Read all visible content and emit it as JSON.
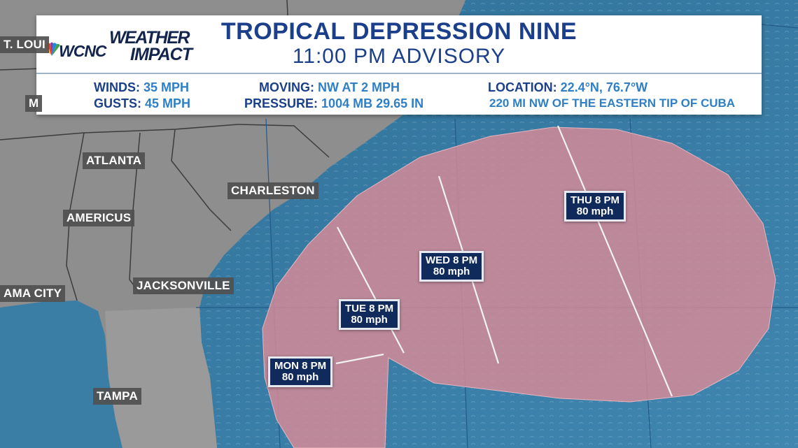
{
  "header": {
    "station": "WCNC",
    "brand_line1": "WEATHER",
    "brand_line2": "IMPACT",
    "title": "TROPICAL DEPRESSION NINE",
    "subtitle": "11:00 PM ADVISORY",
    "winds_label": "WINDS:",
    "winds_value": "35 MPH",
    "gusts_label": "GUSTS:",
    "gusts_value": "45 MPH",
    "moving_label": "MOVING:",
    "moving_value": "NW AT 2 MPH",
    "pressure_label": "PRESSURE:",
    "pressure_value": "1004 MB 29.65 IN",
    "location_label": "LOCATION:",
    "location_value": "22.4°N, 76.7°W",
    "distance": "220 MI NW OF THE EASTERN TIP OF CUBA"
  },
  "cities": {
    "st_louis": "T. LOUI",
    "atlanta": "ATLANTA",
    "charleston": "CHARLESTON",
    "americus": "AMERICUS",
    "jacksonville": "JACKSONVILLE",
    "panama_city": "AMA CITY",
    "tampa": "TAMPA",
    "m_partial": "M"
  },
  "forecast_points": [
    {
      "time": "MON 8 PM",
      "wind": "80 mph"
    },
    {
      "time": "TUE 8 PM",
      "wind": "80 mph"
    },
    {
      "time": "WED 8 PM",
      "wind": "80 mph"
    },
    {
      "time": "THU 8 PM",
      "wind": "80 mph"
    }
  ],
  "colors": {
    "ocean": "#3b7fa6",
    "land": "#8e8e8e",
    "cone": "#d98b97",
    "header_text": "#1b3f8a",
    "header_value": "#2f7fc7",
    "forecast_box": "#102a5c"
  }
}
